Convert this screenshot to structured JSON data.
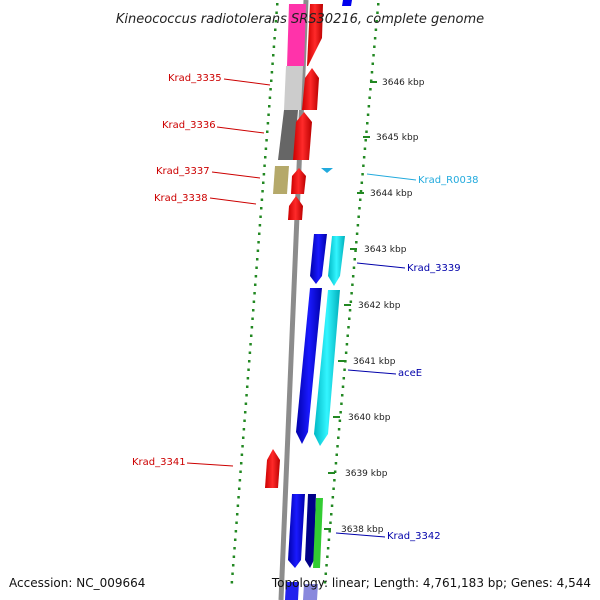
{
  "title": "Kineococcus radiotolerans SRS30216, complete genome",
  "footer": {
    "accession": "Accession: NC_009664",
    "topology": "Topology: linear; Length: 4,761,183 bp; Genes: 4,544"
  },
  "kbp_ticks": [
    "3646 kbp",
    "3645 kbp",
    "3644 kbp",
    "3643 kbp",
    "3642 kbp",
    "3641 kbp",
    "3640 kbp",
    "3639 kbp",
    "3638 kbp"
  ],
  "gene_labels": [
    {
      "id": "krad-3335",
      "text": "Krad_3335",
      "color": "#cc0000"
    },
    {
      "id": "krad-3336",
      "text": "Krad_3336",
      "color": "#cc0000"
    },
    {
      "id": "krad-3337",
      "text": "Krad_3337",
      "color": "#cc0000"
    },
    {
      "id": "krad-3338",
      "text": "Krad_3338",
      "color": "#cc0000"
    },
    {
      "id": "krad-r0038",
      "text": "Krad_R0038",
      "color": "#22aadd"
    },
    {
      "id": "krad-3339",
      "text": "Krad_3339",
      "color": "#0000aa"
    },
    {
      "id": "acee",
      "text": "aceE",
      "color": "#0000aa"
    },
    {
      "id": "krad-3341",
      "text": "Krad_3341",
      "color": "#cc0000"
    },
    {
      "id": "krad-3342",
      "text": "Krad_3342",
      "color": "#0000aa"
    }
  ],
  "colors": {
    "forward_gene": "#ff0000",
    "reverse_gene": "#0000ff",
    "cyan_gene": "#00e5ee",
    "green_gene": "#33cc33",
    "pink_gene": "#ff33aa",
    "gray_light": "#cccccc",
    "gray_dark": "#666666",
    "khaki": "#b5a96a",
    "backbone": "#888888",
    "dots": "#228822"
  }
}
